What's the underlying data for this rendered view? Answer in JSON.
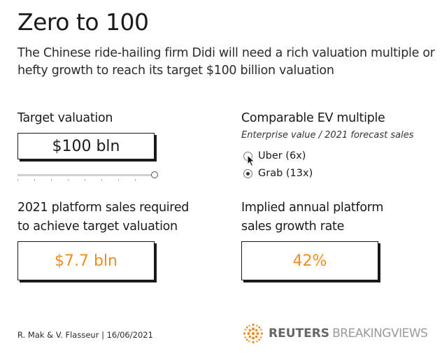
{
  "header": {
    "title": "Zero to 100",
    "subtitle": "The Chinese ride-hailing firm Didi will need a rich valuation multiple or hefty growth to reach its target $100 billion valuation"
  },
  "target_valuation": {
    "label": "Target valuation",
    "value": "$100 bln",
    "slider_level": 1.0
  },
  "ev_multiple": {
    "label": "Comparable EV multiple",
    "note": "Enterprise value / 2021 forecast sales",
    "options": [
      {
        "label": "Uber (6x)",
        "checked": false
      },
      {
        "label": "Grab (13x)",
        "checked": true
      }
    ]
  },
  "sales_required": {
    "label_line1": "2021 platform sales required",
    "label_line2": "to achieve target valuation",
    "value": "$7.7 bln"
  },
  "growth_rate": {
    "label_line1": "Implied annual platform",
    "label_line2": "sales growth rate",
    "value": "42%"
  },
  "footer": {
    "credit": "R. Mak & V. Flasseur | 16/06/2021",
    "brand_primary": "REUTERS",
    "brand_secondary": "BREAKINGVIEWS"
  },
  "colors": {
    "accent": "#f28c1e",
    "text": "#1a1a1a"
  }
}
